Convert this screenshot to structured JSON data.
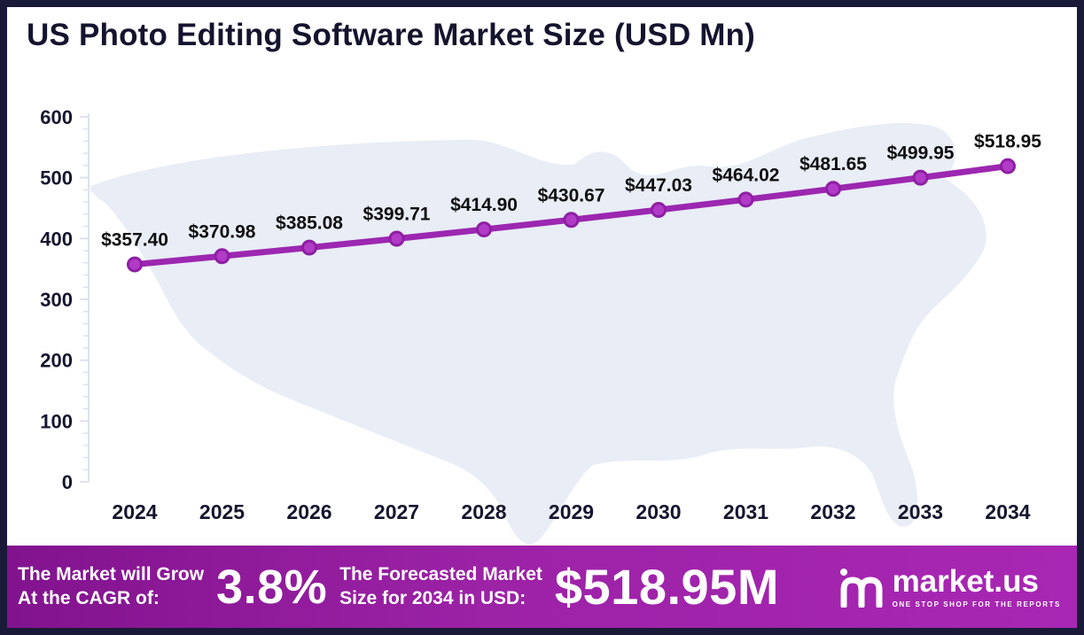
{
  "title": "US Photo Editing Software Market Size (USD Mn)",
  "chart_data": {
    "type": "line",
    "title": "US Photo Editing Software Market Size (USD Mn)",
    "x": [
      2024,
      2025,
      2026,
      2027,
      2028,
      2029,
      2030,
      2031,
      2032,
      2033,
      2034
    ],
    "values": [
      357.4,
      370.98,
      385.08,
      399.71,
      414.9,
      430.67,
      447.03,
      464.02,
      481.65,
      499.95,
      518.95
    ],
    "point_labels": [
      "$357.40",
      "$370.98",
      "$385.08",
      "$399.71",
      "$414.90",
      "$430.67",
      "$447.03",
      "$464.02",
      "$481.65",
      "$499.95",
      "$518.95"
    ],
    "xlabel": "",
    "ylabel": "",
    "ylim": [
      0,
      600
    ],
    "yticks": [
      0,
      100,
      200,
      300,
      400,
      500,
      600
    ],
    "grid": false,
    "legend": "none",
    "line_color": "#9c27b0",
    "marker_fill": "#b13bc6",
    "marker_stroke": "#8e1fa3",
    "background_motif": "us-map-silhouette",
    "background_motif_color": "#e8edf6"
  },
  "footer": {
    "cagr_label_line1": "The Market will Grow",
    "cagr_label_line2": "At the CAGR of:",
    "cagr_value": "3.8%",
    "forecast_label_line1": "The Forecasted Market",
    "forecast_label_line2": "Size for 2034 in USD:",
    "forecast_value": "$518.95M",
    "brand": "market.us",
    "brand_tagline": "ONE STOP SHOP FOR THE REPORTS"
  },
  "colors": {
    "frame_border": "#191a38",
    "title_text": "#15142e",
    "footer_gradient_start": "#82138e",
    "footer_gradient_end": "#a827b4"
  }
}
